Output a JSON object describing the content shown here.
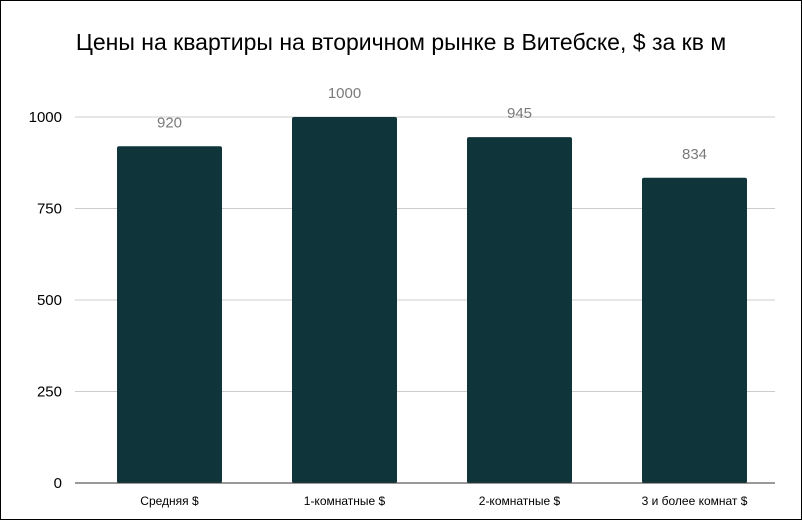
{
  "chart_data": {
    "type": "bar",
    "title": "Цены на квартиры на вторичном рынке в Витебске, $ за кв м",
    "categories": [
      "Средняя $",
      "1-комнатные $",
      "2-комнатные $",
      "3 и более комнат $"
    ],
    "values": [
      920,
      1000,
      945,
      834
    ],
    "data_labels": [
      "920",
      "1000",
      "945",
      "834"
    ],
    "yticks": [
      0,
      250,
      500,
      750,
      1000
    ],
    "ytick_labels": [
      "0",
      "250",
      "500",
      "750",
      "1000"
    ],
    "ylim": [
      0,
      1000
    ],
    "xlabel": "",
    "ylabel": "",
    "grid": true,
    "legend": "none",
    "bar_color": "#0f353b",
    "grid_color": "#cccccc",
    "axis_color": "#333333"
  }
}
